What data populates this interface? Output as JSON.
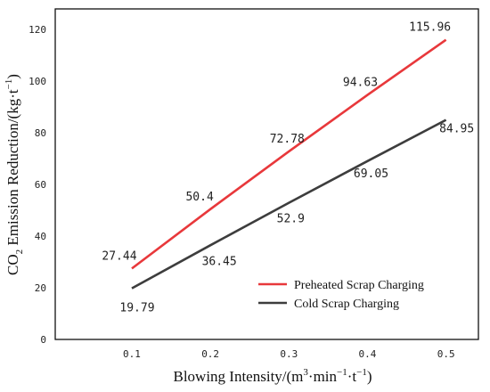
{
  "chart_data": {
    "type": "line",
    "x": [
      0.1,
      0.2,
      0.3,
      0.4,
      0.5
    ],
    "x_tick_labels": [
      "0.1",
      "0.2",
      "0.3",
      "0.4",
      "0.5"
    ],
    "y_tick_labels": [
      "0",
      "20",
      "40",
      "60",
      "80",
      "100",
      "120"
    ],
    "xlim": [
      0,
      0.55
    ],
    "ylim": [
      0,
      130
    ],
    "xlabel": {
      "main": "Blowing Intensity/(m",
      "sup1": "3",
      "mid": "·min",
      "sup2": "−1",
      "mid2": "·t",
      "sup3": "−1",
      "end": ")"
    },
    "ylabel": {
      "pre": "CO",
      "sub": "2",
      "mid": " Emission Reduction/(kg·t",
      "sup": "−1",
      "end": ")"
    },
    "grid": false,
    "legend_position": "lower-right",
    "series": [
      {
        "name": "Preheated Scrap Charging",
        "color": "#e8383b",
        "values": [
          27.44,
          50.4,
          72.78,
          94.63,
          115.96
        ],
        "labels": [
          "27.44",
          "50.4",
          "72.78",
          "94.63",
          "115.96"
        ]
      },
      {
        "name": "Cold Scrap Charging",
        "color": "#3d3d3d",
        "values": [
          19.79,
          36.45,
          52.9,
          69.05,
          84.95
        ],
        "labels": [
          "19.79",
          "36.45",
          "52.9",
          "69.05",
          "84.95"
        ]
      }
    ]
  }
}
